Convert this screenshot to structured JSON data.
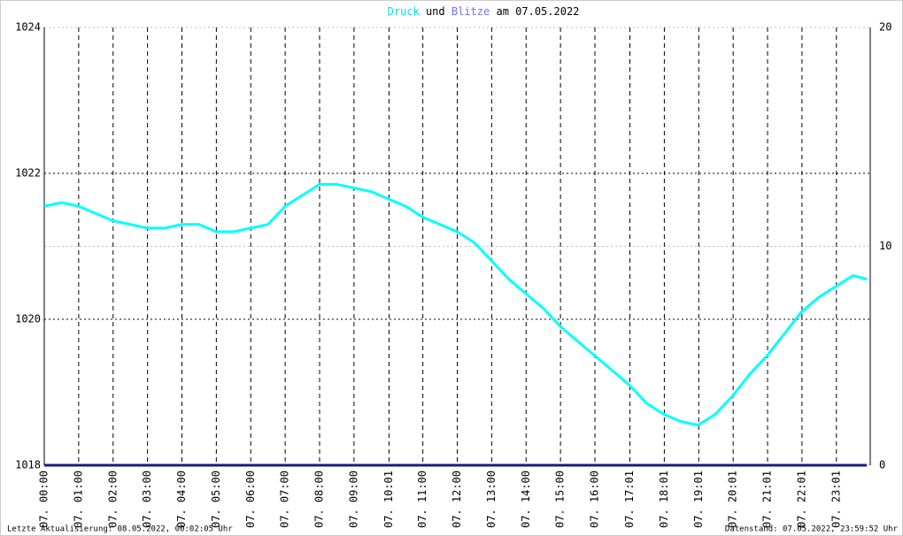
{
  "chart_data": {
    "type": "line",
    "title": {
      "parts": [
        "und",
        "am 07.05.2022"
      ]
    },
    "footer_left": "Letzte Aktualisierung: 08.05.2022, 00:02:05 Uhr",
    "footer_right": "Datenstand: 07.05.2022, 23:59:52 Uhr",
    "x": [
      0,
      0.5,
      1,
      1.5,
      2,
      2.5,
      3,
      3.5,
      4,
      4.5,
      5,
      5.5,
      6,
      6.5,
      7,
      7.5,
      8,
      8.5,
      9,
      9.5,
      10,
      10.5,
      11,
      11.5,
      12,
      12.5,
      13,
      13.5,
      14,
      14.5,
      15,
      15.5,
      16,
      16.5,
      17,
      17.5,
      18,
      18.5,
      19,
      19.5,
      20,
      20.5,
      21,
      21.5,
      22,
      22.5,
      23,
      23.5,
      23.9
    ],
    "series": [
      {
        "name": "Druck",
        "color": "#00ffff",
        "values": [
          1021.55,
          1021.6,
          1021.55,
          1021.45,
          1021.35,
          1021.3,
          1021.25,
          1021.25,
          1021.3,
          1021.3,
          1021.2,
          1021.2,
          1021.25,
          1021.3,
          1021.55,
          1021.7,
          1021.85,
          1021.85,
          1021.8,
          1021.75,
          1021.65,
          1021.55,
          1021.4,
          1021.3,
          1021.2,
          1021.05,
          1020.8,
          1020.55,
          1020.35,
          1020.15,
          1019.9,
          1019.7,
          1019.5,
          1019.3,
          1019.1,
          1018.85,
          1018.7,
          1018.6,
          1018.55,
          1018.7,
          1018.95,
          1019.25,
          1019.5,
          1019.8,
          1020.1,
          1020.3,
          1020.45,
          1020.6,
          1020.55
        ]
      },
      {
        "name": "Blitze",
        "color": "#1a1a80",
        "axis": "y2",
        "values": [
          0,
          0,
          0,
          0,
          0,
          0,
          0,
          0,
          0,
          0,
          0,
          0,
          0,
          0,
          0,
          0,
          0,
          0,
          0,
          0,
          0,
          0,
          0,
          0,
          0,
          0,
          0,
          0,
          0,
          0,
          0,
          0,
          0,
          0,
          0,
          0,
          0,
          0,
          0,
          0,
          0,
          0,
          0,
          0,
          0,
          0,
          0,
          0,
          0
        ]
      }
    ],
    "xlim": [
      0,
      24
    ],
    "xticks": [
      {
        "value": 0,
        "label": "07. 00:00"
      },
      {
        "value": 1,
        "label": "07. 01:00"
      },
      {
        "value": 2,
        "label": "07. 02:00"
      },
      {
        "value": 3,
        "label": "07. 03:00"
      },
      {
        "value": 4,
        "label": "07. 04:00"
      },
      {
        "value": 5,
        "label": "07. 05:00"
      },
      {
        "value": 6,
        "label": "07. 06:00"
      },
      {
        "value": 7,
        "label": "07. 07:00"
      },
      {
        "value": 8,
        "label": "07. 08:00"
      },
      {
        "value": 9,
        "label": "07. 09:00"
      },
      {
        "value": 10.0167,
        "label": "07. 10:01"
      },
      {
        "value": 11,
        "label": "07. 11:00"
      },
      {
        "value": 12,
        "label": "07. 12:00"
      },
      {
        "value": 13,
        "label": "07. 13:00"
      },
      {
        "value": 14,
        "label": "07. 14:00"
      },
      {
        "value": 15,
        "label": "07. 15:00"
      },
      {
        "value": 16,
        "label": "07. 16:00"
      },
      {
        "value": 17.0167,
        "label": "07. 17:01"
      },
      {
        "value": 18.0167,
        "label": "07. 18:01"
      },
      {
        "value": 19.0167,
        "label": "07. 19:01"
      },
      {
        "value": 20.0167,
        "label": "07. 20:01"
      },
      {
        "value": 21.0167,
        "label": "07. 21:01"
      },
      {
        "value": 22.0167,
        "label": "07. 22:01"
      },
      {
        "value": 23.0167,
        "label": "07. 23:01"
      }
    ],
    "ylim": [
      1018,
      1024
    ],
    "yticks": [
      1018,
      1020,
      1022,
      1024
    ],
    "y2lim": [
      0,
      20
    ],
    "y2ticks": [
      0,
      10,
      20
    ],
    "grid": true
  }
}
